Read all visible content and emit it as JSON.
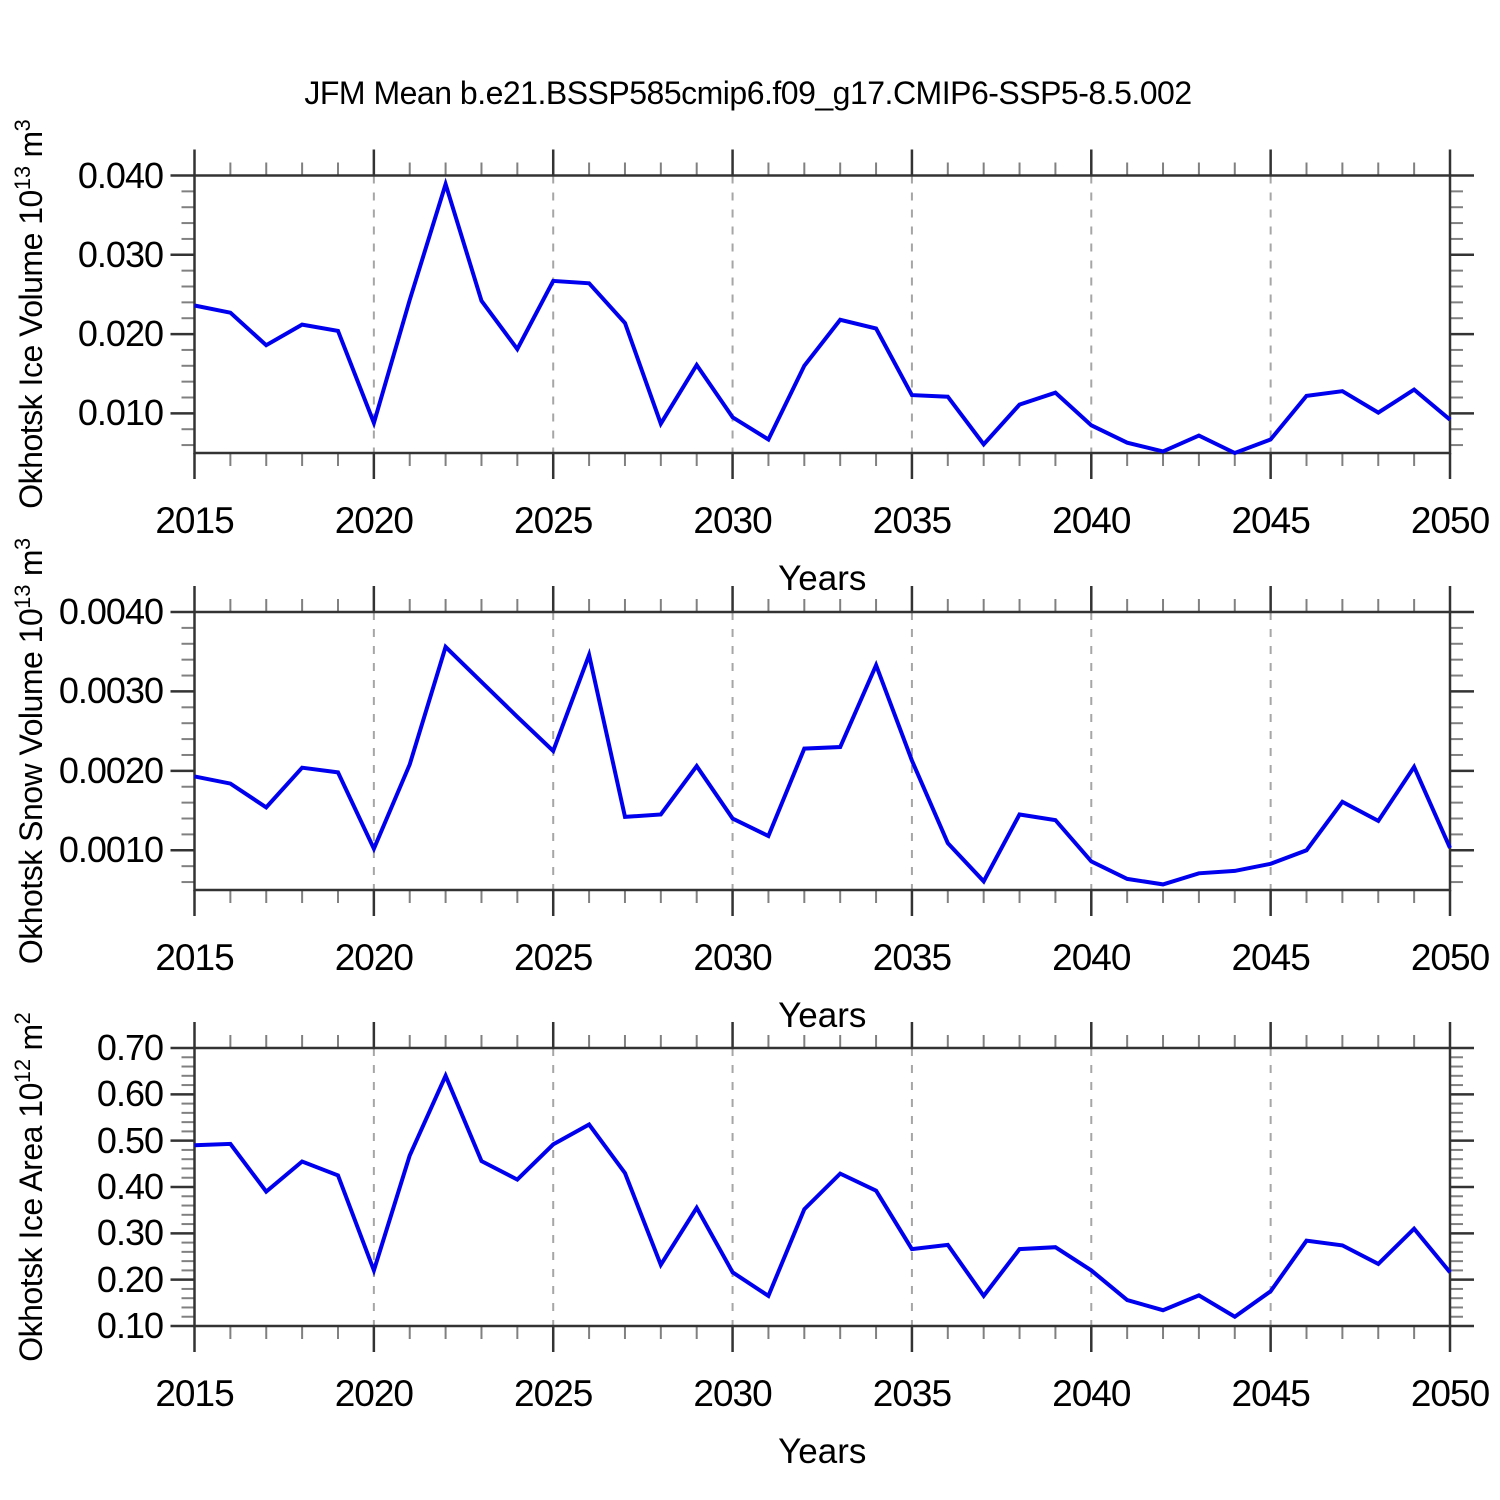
{
  "title": "JFM Mean b.e21.BSSP585cmip6.f09_g17.CMIP6-SSP5-8.5.002",
  "colors": {
    "background": "#ffffff",
    "line": "#0000ee",
    "grid": "#a6a6a6",
    "frame": "#333333",
    "tick_major": "#333333",
    "tick_minor": "#808080",
    "text": "#000000"
  },
  "chart_data": [
    {
      "type": "line",
      "ylabel_text": "Okhotsk Ice Volume 10^13 m^3",
      "ylabel_parts": [
        [
          "Okhotsk Ice Volume 10",
          false
        ],
        [
          "13",
          true
        ],
        [
          " m",
          false
        ],
        [
          "3",
          true
        ]
      ],
      "xlabel": "Years",
      "x": [
        2015,
        2016,
        2017,
        2018,
        2019,
        2020,
        2021,
        2022,
        2023,
        2024,
        2025,
        2026,
        2027,
        2028,
        2029,
        2030,
        2031,
        2032,
        2033,
        2034,
        2035,
        2036,
        2037,
        2038,
        2039,
        2040,
        2041,
        2042,
        2043,
        2044,
        2045,
        2046,
        2047,
        2048,
        2049,
        2050
      ],
      "values": [
        0.0236,
        0.0227,
        0.0186,
        0.0212,
        0.0204,
        0.0088,
        0.0243,
        0.0389,
        0.0242,
        0.0181,
        0.0267,
        0.0264,
        0.0214,
        0.0087,
        0.0161,
        0.0095,
        0.0067,
        0.016,
        0.0218,
        0.0207,
        0.0123,
        0.0121,
        0.0061,
        0.0111,
        0.0126,
        0.0085,
        0.0063,
        0.0052,
        0.0072,
        0.005,
        0.0067,
        0.0122,
        0.0128,
        0.0101,
        0.013,
        0.0092
      ],
      "xlim": [
        2015,
        2050
      ],
      "ylim": [
        0.005,
        0.04
      ],
      "x_tick_labels": [
        "2015",
        "2020",
        "2025",
        "2030",
        "2035",
        "2040",
        "2045",
        "2050"
      ],
      "x_major_ticks": [
        2015,
        2020,
        2025,
        2030,
        2035,
        2040,
        2045,
        2050
      ],
      "grid_years": [
        2020,
        2025,
        2030,
        2035,
        2040,
        2045
      ],
      "y_tick_labels": [
        "0.010",
        "0.020",
        "0.030",
        "0.040"
      ],
      "y_major_ticks": [
        0.01,
        0.02,
        0.03,
        0.04
      ],
      "y_minor_step": 0.002,
      "grid": "vertical-dashed"
    },
    {
      "type": "line",
      "ylabel_text": "Okhotsk Snow Volume 10^13 m^3",
      "ylabel_parts": [
        [
          "Okhotsk Snow Volume 10",
          false
        ],
        [
          "13",
          true
        ],
        [
          " m",
          false
        ],
        [
          "3",
          true
        ]
      ],
      "xlabel": "Years",
      "x": [
        2015,
        2016,
        2017,
        2018,
        2019,
        2020,
        2021,
        2022,
        2023,
        2024,
        2025,
        2026,
        2027,
        2028,
        2029,
        2030,
        2031,
        2032,
        2033,
        2034,
        2035,
        2036,
        2037,
        2038,
        2039,
        2040,
        2041,
        2042,
        2043,
        2044,
        2045,
        2046,
        2047,
        2048,
        2049,
        2050
      ],
      "values": [
        0.00193,
        0.00184,
        0.00154,
        0.00204,
        0.00198,
        0.00102,
        0.00208,
        0.00356,
        0.00312,
        0.00268,
        0.00225,
        0.00346,
        0.00142,
        0.00145,
        0.00206,
        0.0014,
        0.00118,
        0.00228,
        0.0023,
        0.00333,
        0.00213,
        0.00109,
        0.00061,
        0.00145,
        0.00138,
        0.00086,
        0.00064,
        0.00057,
        0.00071,
        0.00074,
        0.00083,
        0.001,
        0.00161,
        0.00137,
        0.00205,
        0.00103
      ],
      "xlim": [
        2015,
        2050
      ],
      "ylim": [
        0.0005,
        0.004
      ],
      "x_tick_labels": [
        "2015",
        "2020",
        "2025",
        "2030",
        "2035",
        "2040",
        "2045",
        "2050"
      ],
      "x_major_ticks": [
        2015,
        2020,
        2025,
        2030,
        2035,
        2040,
        2045,
        2050
      ],
      "grid_years": [
        2020,
        2025,
        2030,
        2035,
        2040,
        2045
      ],
      "y_tick_labels": [
        "0.0010",
        "0.0020",
        "0.0030",
        "0.0040"
      ],
      "y_major_ticks": [
        0.001,
        0.002,
        0.003,
        0.004
      ],
      "y_minor_step": 0.0002,
      "grid": "vertical-dashed"
    },
    {
      "type": "line",
      "ylabel_text": "Okhotsk Ice Area 10^12 m^2",
      "ylabel_parts": [
        [
          "Okhotsk Ice Area 10",
          false
        ],
        [
          "12",
          true
        ],
        [
          " m",
          false
        ],
        [
          "2",
          true
        ]
      ],
      "xlabel": "Years",
      "x": [
        2015,
        2016,
        2017,
        2018,
        2019,
        2020,
        2021,
        2022,
        2023,
        2024,
        2025,
        2026,
        2027,
        2028,
        2029,
        2030,
        2031,
        2032,
        2033,
        2034,
        2035,
        2036,
        2037,
        2038,
        2039,
        2040,
        2041,
        2042,
        2043,
        2044,
        2045,
        2046,
        2047,
        2048,
        2049,
        2050
      ],
      "values": [
        0.49,
        0.493,
        0.39,
        0.455,
        0.425,
        0.22,
        0.468,
        0.64,
        0.456,
        0.416,
        0.492,
        0.535,
        0.43,
        0.232,
        0.355,
        0.216,
        0.165,
        0.352,
        0.429,
        0.392,
        0.266,
        0.275,
        0.165,
        0.266,
        0.27,
        0.22,
        0.156,
        0.134,
        0.166,
        0.12,
        0.175,
        0.284,
        0.274,
        0.234,
        0.31,
        0.216
      ],
      "xlim": [
        2015,
        2050
      ],
      "ylim": [
        0.1,
        0.7
      ],
      "x_tick_labels": [
        "2015",
        "2020",
        "2025",
        "2030",
        "2035",
        "2040",
        "2045",
        "2050"
      ],
      "x_major_ticks": [
        2015,
        2020,
        2025,
        2030,
        2035,
        2040,
        2045,
        2050
      ],
      "grid_years": [
        2020,
        2025,
        2030,
        2035,
        2040,
        2045
      ],
      "y_tick_labels": [
        "0.10",
        "0.20",
        "0.30",
        "0.40",
        "0.50",
        "0.60",
        "0.70"
      ],
      "y_major_ticks": [
        0.1,
        0.2,
        0.3,
        0.4,
        0.5,
        0.6,
        0.7
      ],
      "y_minor_step": 0.02,
      "grid": "vertical-dashed"
    }
  ]
}
